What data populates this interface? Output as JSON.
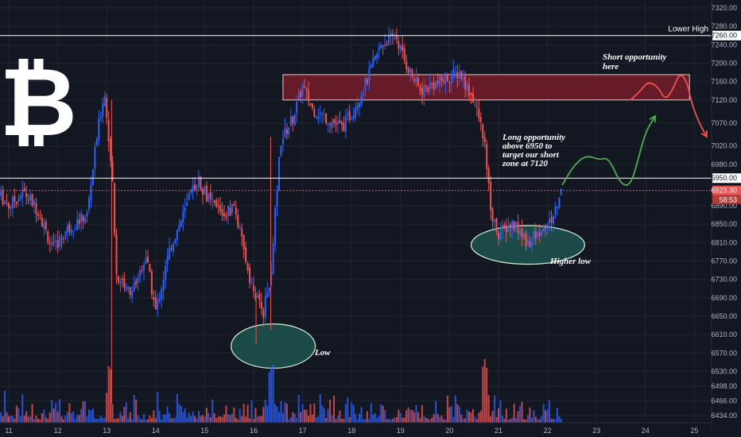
{
  "colors": {
    "background": "#131722",
    "up": "#2962ff",
    "down": "#ef5350",
    "grid": "#1f2430",
    "axis_text": "#b2b5be",
    "level_line": "#ffffff",
    "current_price": "#ef5350",
    "zone_fill": "#8b1e2b",
    "ellipse_fill": "#1f5c55",
    "ellipse_stroke": "#d6f0d0",
    "projection_green": "#4caf50",
    "projection_red": "#ef5350"
  },
  "logo": {
    "symbol": "₿",
    "name": "bitcoin-logo-icon"
  },
  "chart_data": {
    "type": "candlestick",
    "x_axis": {
      "labels": [
        "11",
        "12",
        "13",
        "14",
        "15",
        "16",
        "17",
        "18",
        "19",
        "20",
        "21",
        "22",
        "23",
        "24",
        "25"
      ]
    },
    "y_axis": {
      "range": [
        6420,
        7340
      ],
      "ticks": [
        7320,
        7280,
        7240,
        7200,
        7160,
        7120,
        7070,
        7020,
        6980,
        6890,
        6850,
        6810,
        6770,
        6730,
        6690,
        6650,
        6610,
        6570,
        6530,
        6498,
        6466,
        6434
      ],
      "tick_labels": [
        "7320.00",
        "7280.00",
        "7240.00",
        "7200.00",
        "7160.00",
        "7120.00",
        "7070.00",
        "7020.00",
        "6980.00",
        "6890.00",
        "6850.00",
        "6810.00",
        "6770.00",
        "6730.00",
        "6690.00",
        "6650.00",
        "6610.00",
        "6570.00",
        "6530.00",
        "6498.00",
        "6466.00",
        "6434.00"
      ]
    },
    "price_anchors": [
      [
        10.8,
        6915
      ],
      [
        11.0,
        6890
      ],
      [
        11.3,
        6920
      ],
      [
        11.6,
        6880
      ],
      [
        11.9,
        6795
      ],
      [
        12.2,
        6840
      ],
      [
        12.6,
        6870
      ],
      [
        12.8,
        7040
      ],
      [
        12.95,
        7140
      ],
      [
        13.1,
        6980
      ],
      [
        13.2,
        6740
      ],
      [
        13.5,
        6700
      ],
      [
        13.8,
        6780
      ],
      [
        14.0,
        6660
      ],
      [
        14.3,
        6800
      ],
      [
        14.6,
        6880
      ],
      [
        14.85,
        6950
      ],
      [
        15.1,
        6900
      ],
      [
        15.4,
        6870
      ],
      [
        15.6,
        6890
      ],
      [
        15.8,
        6790
      ],
      [
        16.0,
        6700
      ],
      [
        16.2,
        6660
      ],
      [
        16.35,
        6740
      ],
      [
        16.55,
        7030
      ],
      [
        16.8,
        7080
      ],
      [
        17.0,
        7150
      ],
      [
        17.2,
        7100
      ],
      [
        17.5,
        7080
      ],
      [
        17.8,
        7060
      ],
      [
        18.0,
        7090
      ],
      [
        18.3,
        7160
      ],
      [
        18.6,
        7240
      ],
      [
        18.9,
        7260
      ],
      [
        19.1,
        7200
      ],
      [
        19.4,
        7140
      ],
      [
        19.8,
        7160
      ],
      [
        20.2,
        7180
      ],
      [
        20.5,
        7120
      ],
      [
        20.7,
        7040
      ],
      [
        20.85,
        6870
      ],
      [
        21.0,
        6830
      ],
      [
        21.3,
        6850
      ],
      [
        21.6,
        6810
      ],
      [
        21.8,
        6830
      ],
      [
        22.1,
        6860
      ],
      [
        22.28,
        6923
      ]
    ],
    "volumes_seed": 7,
    "levels": [
      {
        "price": 7260.0,
        "label": "7260.00",
        "caption": "Lower High"
      },
      {
        "price": 6950.0,
        "label": "6950.00"
      },
      {
        "price": 6923.3,
        "label": "6923.30",
        "current": true,
        "countdown": "58:53"
      }
    ],
    "zone": {
      "x_from": 16.6,
      "x_to": 24.9,
      "price_from": 7120,
      "price_to": 7175
    },
    "ellipses": [
      {
        "name": "low-ellipse",
        "cx": 16.4,
        "cy_price": 6585,
        "rx_days": 0.86,
        "ry_price": 48,
        "label": "Low"
      },
      {
        "name": "higher-low-ellipse",
        "cx": 21.6,
        "cy_price": 6805,
        "rx_days": 1.16,
        "ry_price": 42,
        "label": "Higher low"
      }
    ],
    "annotations": {
      "short": [
        "Short opportunity",
        "here"
      ],
      "long": [
        "Long opportunity",
        "above 6950 to",
        "target our short",
        "zone at 7120"
      ]
    },
    "projection_green": [
      [
        22.3,
        6935
      ],
      [
        22.55,
        6980
      ],
      [
        22.8,
        7000
      ],
      [
        23.05,
        6990
      ],
      [
        23.25,
        6995
      ],
      [
        23.5,
        6935
      ],
      [
        23.7,
        6935
      ],
      [
        23.85,
        6990
      ],
      [
        24.0,
        7050
      ],
      [
        24.2,
        7085
      ]
    ],
    "projection_red": [
      [
        23.7,
        7120
      ],
      [
        23.9,
        7140
      ],
      [
        24.05,
        7160
      ],
      [
        24.25,
        7150
      ],
      [
        24.4,
        7120
      ],
      [
        24.55,
        7140
      ],
      [
        24.7,
        7180
      ],
      [
        24.85,
        7160
      ],
      [
        24.95,
        7110
      ],
      [
        25.1,
        7070
      ],
      [
        25.25,
        7040
      ]
    ]
  }
}
